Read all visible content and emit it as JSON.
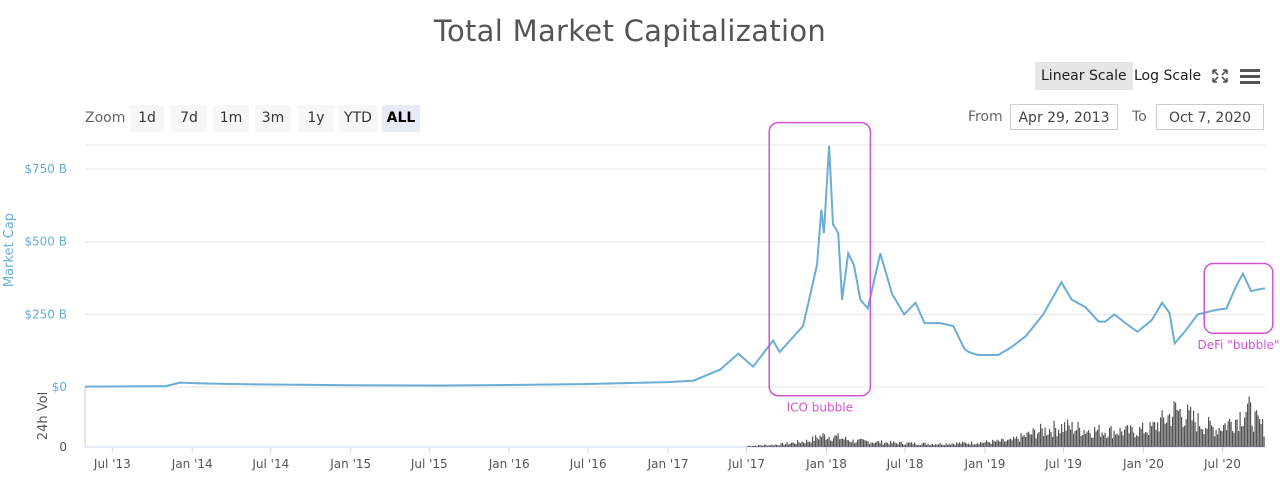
{
  "title": "Total Market Capitalization",
  "scale_buttons": [
    {
      "label": "Linear Scale",
      "active": true
    },
    {
      "label": "Log Scale",
      "active": false
    }
  ],
  "icons": [
    "fullscreen-icon",
    "menu-icon"
  ],
  "zoom": {
    "label": "Zoom",
    "buttons": [
      {
        "label": "1d",
        "active": false
      },
      {
        "label": "7d",
        "active": false
      },
      {
        "label": "1m",
        "active": false
      },
      {
        "label": "3m",
        "active": false
      },
      {
        "label": "1y",
        "active": false
      },
      {
        "label": "YTD",
        "active": false
      },
      {
        "label": "ALL",
        "active": true
      }
    ]
  },
  "range": {
    "from_label": "From",
    "from_value": "Apr 29, 2013",
    "to_label": "To",
    "to_value": "Oct 7, 2020"
  },
  "colors": {
    "line": "#6aaed6",
    "volume": "#555555",
    "annotation": "#d452d4",
    "axis_text": "#6aaed6",
    "grid": "#e6e6e6"
  },
  "chart_data": {
    "type": "line",
    "x_range": [
      "2013-04-29",
      "2020-10-07"
    ],
    "x_ticks": [
      "Jul '13",
      "Jan '14",
      "Jul '14",
      "Jan '15",
      "Jul '15",
      "Jan '16",
      "Jul '16",
      "Jan '17",
      "Jul '17",
      "Jan '18",
      "Jul '18",
      "Jan '19",
      "Jul '19",
      "Jan '20",
      "Jul '20"
    ],
    "x_tick_dates": [
      "2013-07-01",
      "2014-01-01",
      "2014-07-01",
      "2015-01-01",
      "2015-07-01",
      "2016-01-01",
      "2016-07-01",
      "2017-01-01",
      "2017-07-01",
      "2018-01-01",
      "2018-07-01",
      "2019-01-01",
      "2019-07-01",
      "2020-01-01",
      "2020-07-01"
    ],
    "market_cap": {
      "axis_title": "Market Cap",
      "ylim": [
        0,
        850
      ],
      "y_ticks": [
        0,
        250,
        500,
        750
      ],
      "y_tick_labels": [
        "$0",
        "$250 B",
        "$500 B",
        "$750 B"
      ],
      "grid": true,
      "x": [
        "2013-04-29",
        "2013-11-01",
        "2013-12-04",
        "2014-02-01",
        "2014-06-01",
        "2015-01-01",
        "2015-08-01",
        "2016-01-01",
        "2016-06-15",
        "2017-01-01",
        "2017-03-01",
        "2017-05-01",
        "2017-06-12",
        "2017-07-16",
        "2017-08-31",
        "2017-09-15",
        "2017-11-08",
        "2017-12-10",
        "2017-12-20",
        "2017-12-26",
        "2018-01-07",
        "2018-01-16",
        "2018-01-28",
        "2018-02-06",
        "2018-02-20",
        "2018-03-05",
        "2018-03-20",
        "2018-04-06",
        "2018-05-05",
        "2018-06-01",
        "2018-06-29",
        "2018-07-25",
        "2018-08-15",
        "2018-09-20",
        "2018-10-20",
        "2018-11-15",
        "2018-11-25",
        "2018-12-15",
        "2019-01-31",
        "2019-03-01",
        "2019-04-05",
        "2019-05-15",
        "2019-06-26",
        "2019-07-20",
        "2019-08-20",
        "2019-09-20",
        "2019-10-05",
        "2019-10-26",
        "2019-11-25",
        "2019-12-18",
        "2020-01-20",
        "2020-02-13",
        "2020-03-01",
        "2020-03-13",
        "2020-04-05",
        "2020-05-05",
        "2020-06-15",
        "2020-07-10",
        "2020-08-01",
        "2020-08-17",
        "2020-09-05",
        "2020-09-20",
        "2020-10-07"
      ],
      "values": [
        1.5,
        3,
        15,
        12,
        9,
        6,
        5,
        7,
        10,
        17,
        22,
        60,
        115,
        70,
        160,
        120,
        210,
        420,
        610,
        530,
        830,
        560,
        530,
        300,
        460,
        420,
        300,
        270,
        460,
        320,
        250,
        290,
        220,
        220,
        210,
        130,
        120,
        110,
        110,
        135,
        175,
        250,
        360,
        300,
        275,
        225,
        225,
        250,
        215,
        190,
        230,
        290,
        255,
        150,
        190,
        250,
        265,
        270,
        345,
        390,
        330,
        335,
        340
      ]
    },
    "volume": {
      "axis_title": "24h Vol",
      "ylim": [
        0,
        1
      ],
      "y_ticks": [
        0
      ],
      "y_tick_labels": [
        "0"
      ],
      "x": [
        "2017-07-01",
        "2017-09-15",
        "2017-11-20",
        "2017-12-20",
        "2018-01-20",
        "2018-03-01",
        "2018-06-01",
        "2018-09-01",
        "2018-12-01",
        "2019-03-01",
        "2019-05-01",
        "2019-07-01",
        "2019-09-01",
        "2019-12-01",
        "2020-01-15",
        "2020-02-20",
        "2020-03-15",
        "2020-05-01",
        "2020-06-15",
        "2020-08-01",
        "2020-08-25",
        "2020-09-15",
        "2020-10-07"
      ],
      "values": [
        0.02,
        0.05,
        0.12,
        0.22,
        0.2,
        0.12,
        0.08,
        0.06,
        0.08,
        0.12,
        0.3,
        0.4,
        0.32,
        0.3,
        0.35,
        0.55,
        0.72,
        0.5,
        0.35,
        0.55,
        0.75,
        0.5,
        0.35
      ]
    },
    "annotations": [
      {
        "label": "ICO bubble",
        "x_start": "2017-08-22",
        "x_end": "2018-04-12",
        "y_low": -30,
        "y_high": 910
      },
      {
        "label": "DeFi \"bubble\"",
        "x_start": "2020-05-20",
        "x_end": "2020-10-25",
        "y_low": 185,
        "y_high": 425
      }
    ]
  }
}
